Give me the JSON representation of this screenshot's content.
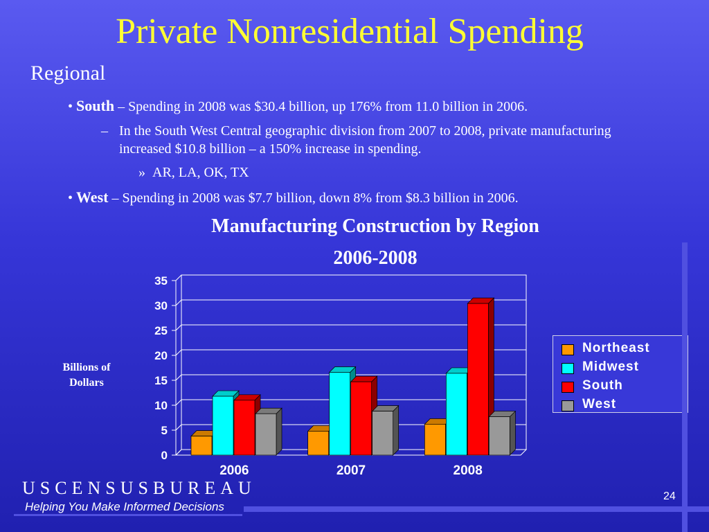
{
  "slide": {
    "title": "Private Nonresidential Spending",
    "section": "Regional",
    "bullets": {
      "south_label": "South",
      "south_text": " – Spending in 2008 was $30.4 billion, up 176% from 11.0 billion in 2006.",
      "sub1_text": "In the South West Central geographic division from 2007 to 2008,  private manufacturing increased $10.8 billion – a 150% increase in spending.",
      "sub2_text": "AR, LA, OK, TX",
      "west_label": "West",
      "west_text": " – Spending in 2008 was $7.7 billion, down  8% from $8.3 billion in 2006."
    }
  },
  "chart_data": {
    "type": "bar",
    "title": "Manufacturing Construction by Region",
    "subtitle": "2006-2008",
    "ylabel": "Billions of Dollars",
    "categories": [
      "2006",
      "2007",
      "2008"
    ],
    "ylim": [
      0,
      35
    ],
    "yticks": [
      0,
      5,
      10,
      15,
      20,
      25,
      30,
      35
    ],
    "legend_position": "right",
    "series": [
      {
        "name": "Northeast",
        "color": "#ff9900",
        "values": [
          3.8,
          4.8,
          6.2
        ]
      },
      {
        "name": "Midwest",
        "color": "#00ffff",
        "values": [
          11.8,
          16.6,
          16.4
        ]
      },
      {
        "name": "South",
        "color": "#ff0000",
        "values": [
          11.0,
          14.7,
          30.4
        ]
      },
      {
        "name": "West",
        "color": "#999999",
        "values": [
          8.3,
          8.8,
          7.7
        ]
      }
    ]
  },
  "footer": {
    "brand": "USCENSUSBUREAU",
    "tagline": "Helping You Make Informed Decisions",
    "page": "24"
  }
}
